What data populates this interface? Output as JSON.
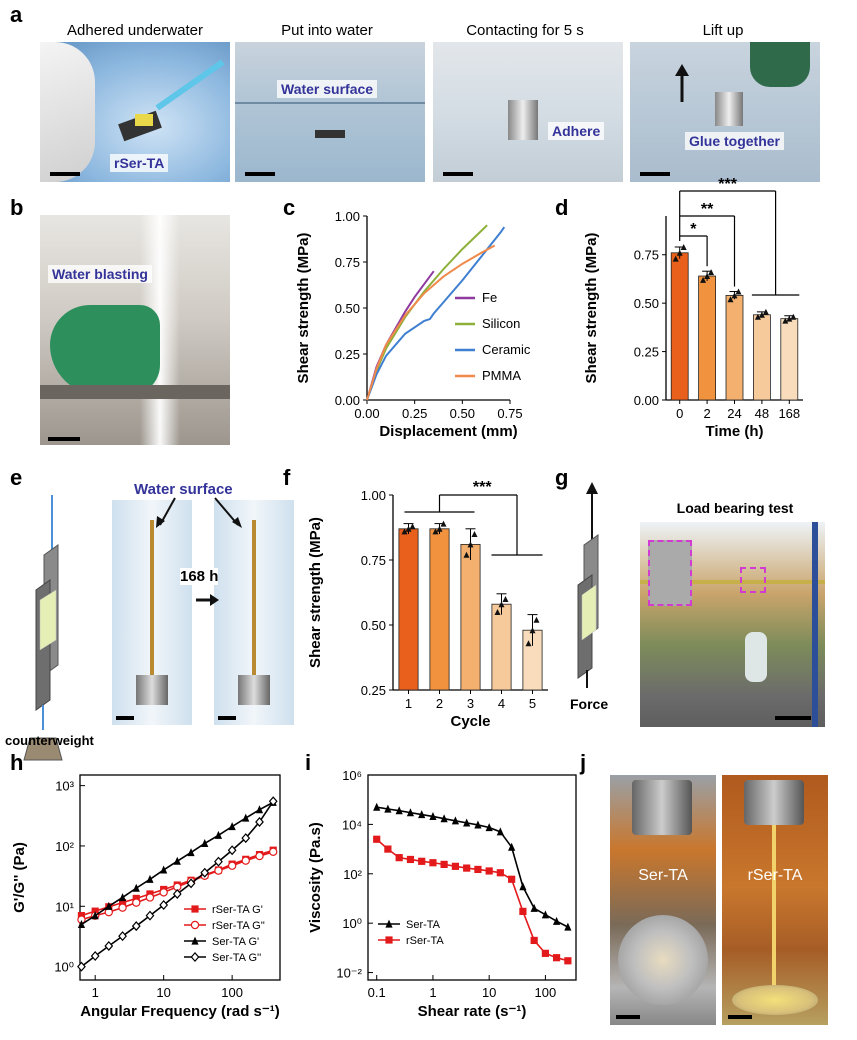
{
  "panel_labels": {
    "a": "a",
    "b": "b",
    "c": "c",
    "d": "d",
    "e": "e",
    "f": "f",
    "g": "g",
    "h": "h",
    "i": "i",
    "j": "j"
  },
  "panel_a": {
    "titles": [
      "Adhered underwater",
      "Put into water",
      "Contacting for 5 s",
      "Lift up"
    ],
    "overlays": {
      "rser_ta": "rSer-TA",
      "water_surface": "Water surface",
      "adhere": "Adhere",
      "glue_together": "Glue together"
    }
  },
  "panel_b": {
    "overlay": "Water blasting"
  },
  "panel_e": {
    "overlay": "Water surface",
    "duration": "168 h",
    "counterweight": "counterweight"
  },
  "panel_g": {
    "title": "Load bearing test",
    "force": "Force"
  },
  "panel_j": {
    "left_label": "Ser-TA",
    "right_label": "rSer-TA"
  },
  "colors": {
    "fe": "#8e3a9e",
    "silicon": "#8cb03a",
    "ceramic": "#3f7fd1",
    "pmma": "#f08a4b",
    "red": "#e31a1c",
    "black": "#000000",
    "overlay_text": "#33339a"
  },
  "chart_data": [
    {
      "id": "c",
      "type": "line",
      "xlabel": "Displacement (mm)",
      "ylabel": "Shear strength (MPa)",
      "xlim": [
        0,
        0.75
      ],
      "ylim": [
        0,
        1.0
      ],
      "xticks": [
        "0.00",
        "0.25",
        "0.50",
        "0.75"
      ],
      "yticks": [
        "0.00",
        "0.25",
        "0.50",
        "0.75",
        "1.00"
      ],
      "legend_position": "right",
      "series": [
        {
          "name": "Fe",
          "color": "#8e3a9e",
          "x": [
            0,
            0.05,
            0.1,
            0.15,
            0.2,
            0.25,
            0.3,
            0.35
          ],
          "y": [
            0,
            0.18,
            0.3,
            0.39,
            0.48,
            0.56,
            0.63,
            0.7
          ]
        },
        {
          "name": "Silicon",
          "color": "#8cb03a",
          "x": [
            0,
            0.05,
            0.1,
            0.2,
            0.3,
            0.4,
            0.5,
            0.6,
            0.63
          ],
          "y": [
            0,
            0.16,
            0.28,
            0.45,
            0.59,
            0.71,
            0.82,
            0.92,
            0.95
          ]
        },
        {
          "name": "Ceramic",
          "color": "#3f7fd1",
          "x": [
            0,
            0.05,
            0.1,
            0.2,
            0.3,
            0.33,
            0.35,
            0.4,
            0.5,
            0.6,
            0.7,
            0.72
          ],
          "y": [
            0,
            0.14,
            0.24,
            0.36,
            0.43,
            0.44,
            0.47,
            0.53,
            0.65,
            0.78,
            0.91,
            0.94
          ]
        },
        {
          "name": "PMMA",
          "color": "#f08a4b",
          "x": [
            0,
            0.05,
            0.1,
            0.2,
            0.3,
            0.4,
            0.5,
            0.6,
            0.67
          ],
          "y": [
            0,
            0.17,
            0.3,
            0.46,
            0.58,
            0.67,
            0.74,
            0.8,
            0.84
          ]
        }
      ]
    },
    {
      "id": "d",
      "type": "bar",
      "xlabel": "Time (h)",
      "ylabel": "Shear strength (MPa)",
      "ylim": [
        0,
        0.95
      ],
      "yticks": [
        "0.00",
        "0.25",
        "0.50",
        "0.75"
      ],
      "categories": [
        "0",
        "2",
        "24",
        "48",
        "168"
      ],
      "values": [
        0.76,
        0.64,
        0.54,
        0.44,
        0.42
      ],
      "errors": [
        0.03,
        0.025,
        0.02,
        0.015,
        0.015
      ],
      "points": [
        [
          0.73,
          0.76,
          0.79
        ],
        [
          0.62,
          0.64,
          0.66
        ],
        [
          0.52,
          0.54,
          0.56
        ],
        [
          0.43,
          0.44,
          0.455
        ],
        [
          0.41,
          0.42,
          0.43
        ]
      ],
      "colors": [
        "#e8601c",
        "#f1923f",
        "#f4b06f",
        "#f7ca9c",
        "#f9dcbc"
      ],
      "significance": [
        "*",
        "**",
        "***"
      ]
    },
    {
      "id": "f",
      "type": "bar",
      "xlabel": "Cycle",
      "ylabel": "Shear strength (MPa)",
      "ylim": [
        0.25,
        1.0
      ],
      "yticks": [
        "0.25",
        "0.50",
        "0.75",
        "1.00"
      ],
      "categories": [
        "1",
        "2",
        "3",
        "4",
        "5"
      ],
      "values": [
        0.87,
        0.87,
        0.81,
        0.58,
        0.48
      ],
      "errors": [
        0.02,
        0.02,
        0.06,
        0.04,
        0.06
      ],
      "points": [
        [
          0.86,
          0.87,
          0.88
        ],
        [
          0.86,
          0.87,
          0.89
        ],
        [
          0.77,
          0.81,
          0.85
        ],
        [
          0.55,
          0.58,
          0.6
        ],
        [
          0.43,
          0.48,
          0.52
        ]
      ],
      "colors": [
        "#e8601c",
        "#f1923f",
        "#f4b06f",
        "#f7ca9c",
        "#f9dcbc"
      ],
      "significance": [
        "***"
      ]
    },
    {
      "id": "h",
      "type": "line",
      "xlabel": "Angular Frequency (rad s⁻¹)",
      "ylabel": "G'/G'' (Pa)",
      "xscale": "log",
      "yscale": "log",
      "xlim": [
        0.6,
        500
      ],
      "ylim": [
        0.6,
        1500
      ],
      "xticks": [
        "1",
        "10",
        "100"
      ],
      "yticks": [
        "10⁰",
        "10¹",
        "10²",
        "10³"
      ],
      "legend_position": "bottom-right",
      "series": [
        {
          "name": "rSer-TA G'",
          "color": "#e31a1c",
          "marker": "filled-square",
          "x": [
            0.63,
            1,
            1.58,
            2.51,
            3.98,
            6.31,
            10,
            15.8,
            25.1,
            39.8,
            63.1,
            100,
            158,
            251,
            398
          ],
          "y": [
            7,
            8.3,
            9.8,
            11.5,
            13.5,
            16,
            19,
            22.5,
            27,
            33,
            40,
            50,
            60,
            72,
            85
          ]
        },
        {
          "name": "rSer-TA G''",
          "color": "#e31a1c",
          "marker": "open-circle",
          "x": [
            0.63,
            1,
            1.58,
            2.51,
            3.98,
            6.31,
            10,
            15.8,
            25.1,
            39.8,
            63.1,
            100,
            158,
            251,
            398
          ],
          "y": [
            6,
            7,
            8,
            9.5,
            11.5,
            14,
            17,
            21,
            26,
            32,
            39,
            47,
            57,
            68,
            80
          ]
        },
        {
          "name": "Ser-TA G'",
          "color": "#000000",
          "marker": "filled-triangle",
          "x": [
            0.63,
            1,
            1.58,
            2.51,
            3.98,
            6.31,
            10,
            15.8,
            25.1,
            39.8,
            63.1,
            100,
            158,
            251,
            398
          ],
          "y": [
            5,
            7,
            10,
            14,
            20,
            28,
            40,
            56,
            78,
            110,
            150,
            210,
            290,
            400,
            530
          ]
        },
        {
          "name": "Ser-TA G''",
          "color": "#000000",
          "marker": "open-diamond",
          "x": [
            0.63,
            1,
            1.58,
            2.51,
            3.98,
            6.31,
            10,
            15.8,
            25.1,
            39.8,
            63.1,
            100,
            158,
            251,
            398
          ],
          "y": [
            1,
            1.5,
            2.2,
            3.2,
            4.7,
            7,
            10.5,
            16,
            24,
            36,
            55,
            85,
            135,
            250,
            550
          ]
        }
      ]
    },
    {
      "id": "i",
      "type": "line",
      "xlabel": "Shear rate (s⁻¹)",
      "ylabel": "Viscosity (Pa.s)",
      "xscale": "log",
      "yscale": "log",
      "xlim": [
        0.07,
        350
      ],
      "ylim": [
        0.005,
        1000000
      ],
      "xticks": [
        "0.1",
        "1",
        "10",
        "100"
      ],
      "yticks": [
        "10⁻²",
        "10⁰",
        "10²",
        "10⁴",
        "10⁶"
      ],
      "legend_position": "bottom-left",
      "series": [
        {
          "name": "Ser-TA",
          "color": "#000000",
          "marker": "filled-triangle",
          "x": [
            0.1,
            0.158,
            0.251,
            0.398,
            0.631,
            1,
            1.58,
            2.51,
            3.98,
            6.31,
            10,
            15.8,
            25.1,
            39.8,
            63.1,
            100,
            158,
            251
          ],
          "y": [
            50000,
            42000,
            36000,
            30000,
            25000,
            21000,
            17000,
            14000,
            11500,
            9500,
            7500,
            5000,
            1200,
            30,
            4,
            2.2,
            1.2,
            0.7
          ]
        },
        {
          "name": "rSer-TA",
          "color": "#e31a1c",
          "marker": "filled-square",
          "x": [
            0.1,
            0.158,
            0.251,
            0.398,
            0.631,
            1,
            1.58,
            2.51,
            3.98,
            6.31,
            10,
            15.8,
            25.1,
            39.8,
            63.1,
            100,
            158,
            251
          ],
          "y": [
            2500,
            1000,
            450,
            380,
            320,
            280,
            240,
            200,
            170,
            150,
            130,
            110,
            60,
            3,
            0.2,
            0.06,
            0.04,
            0.03
          ]
        }
      ]
    }
  ]
}
